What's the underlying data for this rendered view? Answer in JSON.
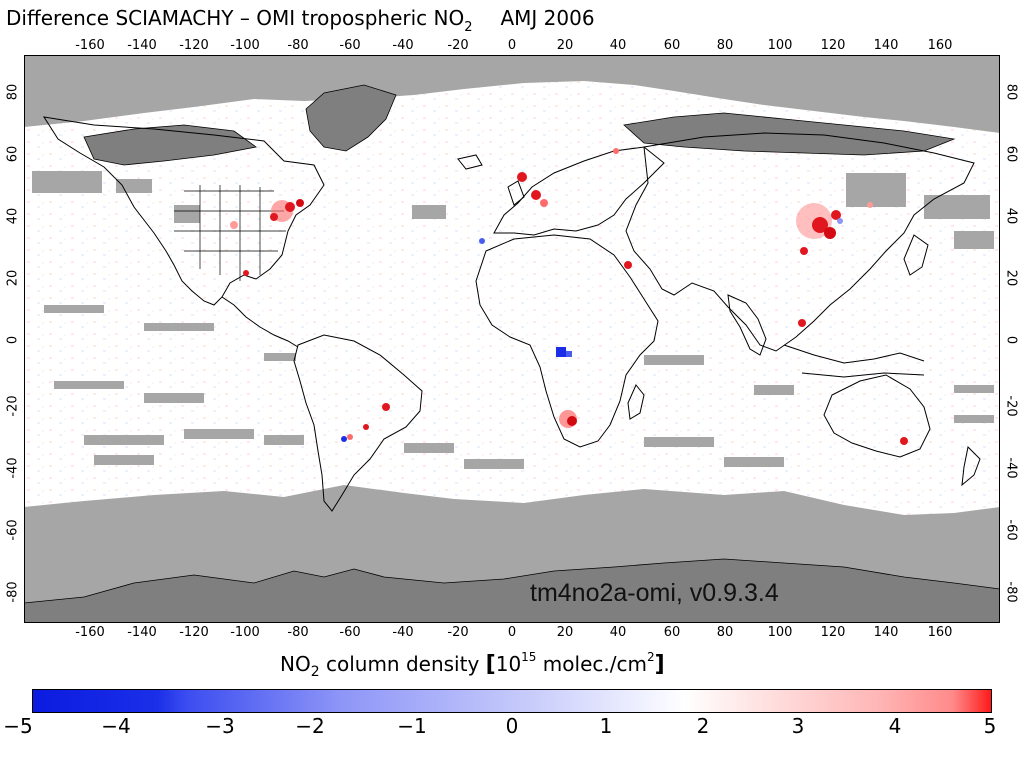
{
  "title": {
    "main": "Difference SCIAMACHY – OMI tropospheric NO",
    "sub": "2",
    "period": "AMJ 2006"
  },
  "lon_ticks": [
    "-160",
    "-140",
    "-120",
    "-100",
    "-80",
    "-60",
    "-40",
    "-20",
    "0",
    "20",
    "40",
    "60",
    "80",
    "100",
    "120",
    "140",
    "160"
  ],
  "lat_ticks": [
    "80",
    "60",
    "40",
    "20",
    "0",
    "-20",
    "-40",
    "-60",
    "-80"
  ],
  "stamp": "tm4no2a-omi, v0.9.3.4",
  "colorbar": {
    "title_prefix": "NO",
    "title_sub": "2",
    "title_mid": " column density ",
    "bracket_open": "[",
    "unit_base": "10",
    "unit_exp": "15",
    "unit_rest": " molec./cm",
    "unit_exp2": "2",
    "bracket_close": "]",
    "ticks": [
      "−5",
      "−4",
      "−3",
      "−2",
      "−1",
      "0",
      "1",
      "2",
      "3",
      "4",
      "5"
    ]
  },
  "colors": {
    "missing": "#a6a6a6",
    "land_missing": "#7f7f7f",
    "negative": "#1a2ee8",
    "positive": "#e0171e"
  }
}
